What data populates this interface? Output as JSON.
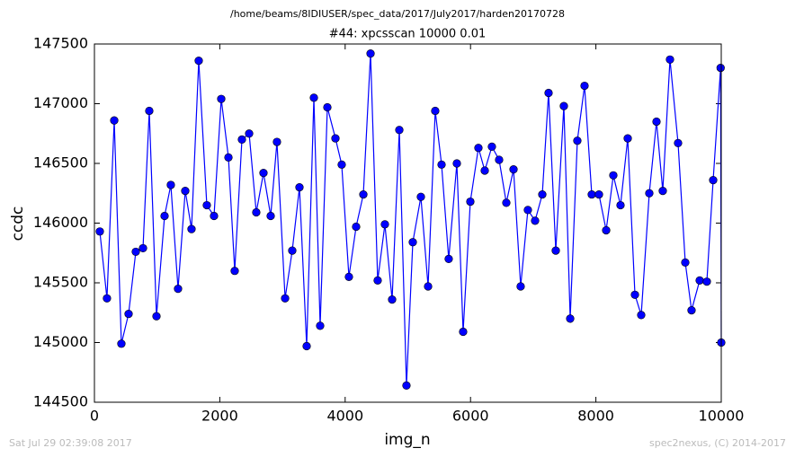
{
  "chart_data": {
    "type": "line",
    "suptitle": "/home/beams/8IDIUSER/spec_data/2017/July2017/harden20170728",
    "title": "#44: xpcsscan 10000 0.01",
    "x_label": "img_n",
    "y_label": "ccdc",
    "footer_left": "Sat Jul 29 02:39:08 2017",
    "footer_right": "spec2nexus, (C) 2014-2017",
    "xlim": [
      0,
      10000
    ],
    "ylim": [
      144500,
      147500
    ],
    "xticks": [
      0,
      2000,
      4000,
      6000,
      8000,
      10000
    ],
    "yticks": [
      144500,
      145000,
      145500,
      146000,
      146500,
      147000,
      147500
    ],
    "grid": false,
    "series": [
      {
        "name": "ccdc",
        "color": "#0000ff",
        "x": [
          86,
          200,
          316,
          430,
          545,
          660,
          775,
          875,
          990,
          1119,
          1219,
          1334,
          1449,
          1549,
          1664,
          1793,
          1908,
          2023,
          2138,
          2238,
          2353,
          2468,
          2582,
          2697,
          2812,
          2912,
          3042,
          3156,
          3271,
          3386,
          3501,
          3601,
          3716,
          3845,
          3945,
          4060,
          4175,
          4290,
          4405,
          4519,
          4634,
          4749,
          4864,
          4978,
          5079,
          5208,
          5323,
          5437,
          5538,
          5652,
          5782,
          5882,
          5997,
          6126,
          6227,
          6341,
          6456,
          6571,
          6686,
          6800,
          6915,
          7030,
          7145,
          7245,
          7360,
          7489,
          7590,
          7704,
          7819,
          7934,
          8049,
          8164,
          8278,
          8393,
          8508,
          8623,
          8723,
          8852,
          8967,
          9067,
          9182,
          9311,
          9426,
          9526,
          9656,
          9770,
          9871,
          9990,
          10000
        ],
        "values": [
          145930,
          145370,
          146860,
          144990,
          145240,
          145760,
          145790,
          146940,
          145220,
          146060,
          146320,
          145450,
          146270,
          145950,
          147360,
          146150,
          146060,
          147040,
          146550,
          145600,
          146700,
          146750,
          146090,
          146420,
          146060,
          146680,
          145370,
          145770,
          146300,
          144970,
          147050,
          145140,
          146970,
          146710,
          146490,
          145550,
          145970,
          146240,
          147420,
          145520,
          145990,
          145360,
          146780,
          144640,
          145840,
          146220,
          145470,
          146940,
          146490,
          145700,
          146500,
          145090,
          146180,
          146630,
          146440,
          146640,
          146530,
          146170,
          146450,
          145470,
          146110,
          146020,
          146240,
          147090,
          145770,
          146980,
          145200,
          146690,
          147150,
          146240,
          146240,
          145940,
          146400,
          146150,
          146710,
          145400,
          145230,
          146250,
          146850,
          146270,
          147370,
          146670,
          145670,
          145270,
          145520,
          145510,
          146360,
          147300,
          145000
        ]
      }
    ]
  }
}
